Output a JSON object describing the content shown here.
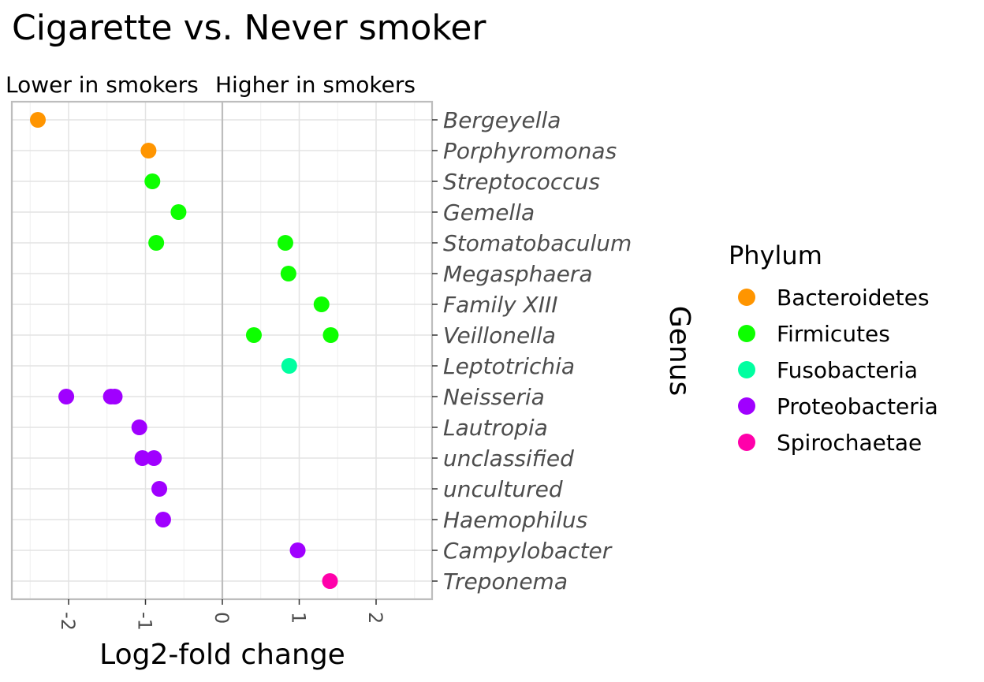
{
  "chart_data": {
    "type": "scatter",
    "title": "Cigarette vs. Never smoker",
    "subtitle_left": "Lower in smokers",
    "subtitle_right": "Higher in smokers",
    "xlabel": "Log2-fold change",
    "ylabel": "Genus",
    "xlim": [
      -2.75,
      2.75
    ],
    "x_ticks": [
      -2,
      -1,
      0,
      1,
      2
    ],
    "x_tick_labels": [
      "-2",
      "-1",
      "0",
      "1",
      "2"
    ],
    "x_tick_rotation": 90,
    "vline_at": 0,
    "grid": true,
    "categories": [
      "Bergeyella",
      "Porphyromonas",
      "Streptococcus",
      "Gemella",
      "Stomatobaculum",
      "Megasphaera",
      "Family XIII",
      "Veillonella",
      "Leptotrichia",
      "Neisseria",
      "Lautropia",
      "unclassified",
      "uncultured",
      "Haemophilus",
      "Campylobacter",
      "Treponema"
    ],
    "legend": {
      "title": "Phylum",
      "position": "right",
      "entries": [
        {
          "name": "Bacteroidetes",
          "color": "#FF9500"
        },
        {
          "name": "Firmicutes",
          "color": "#0DFF00"
        },
        {
          "name": "Fusobacteria",
          "color": "#00FFA0"
        },
        {
          "name": "Proteobacteria",
          "color": "#A000FF"
        },
        {
          "name": "Spirochaetae",
          "color": "#FF00AA"
        }
      ]
    },
    "points": [
      {
        "genus": "Bergeyella",
        "phylum": "Bacteroidetes",
        "x": -2.4
      },
      {
        "genus": "Porphyromonas",
        "phylum": "Bacteroidetes",
        "x": -0.96
      },
      {
        "genus": "Streptococcus",
        "phylum": "Firmicutes",
        "x": -0.91
      },
      {
        "genus": "Gemella",
        "phylum": "Firmicutes",
        "x": -0.57
      },
      {
        "genus": "Stomatobaculum",
        "phylum": "Firmicutes",
        "x": -0.86
      },
      {
        "genus": "Stomatobaculum",
        "phylum": "Firmicutes",
        "x": 0.82
      },
      {
        "genus": "Megasphaera",
        "phylum": "Firmicutes",
        "x": 0.86
      },
      {
        "genus": "Family XIII",
        "phylum": "Firmicutes",
        "x": 1.29
      },
      {
        "genus": "Veillonella",
        "phylum": "Firmicutes",
        "x": 0.41
      },
      {
        "genus": "Veillonella",
        "phylum": "Firmicutes",
        "x": 1.41
      },
      {
        "genus": "Leptotrichia",
        "phylum": "Fusobacteria",
        "x": 0.87
      },
      {
        "genus": "Neisseria",
        "phylum": "Proteobacteria",
        "x": -2.03
      },
      {
        "genus": "Neisseria",
        "phylum": "Proteobacteria",
        "x": -1.45
      },
      {
        "genus": "Neisseria",
        "phylum": "Proteobacteria",
        "x": -1.4
      },
      {
        "genus": "Lautropia",
        "phylum": "Proteobacteria",
        "x": -1.08
      },
      {
        "genus": "unclassified",
        "phylum": "Proteobacteria",
        "x": -1.04
      },
      {
        "genus": "unclassified",
        "phylum": "Proteobacteria",
        "x": -0.89
      },
      {
        "genus": "uncultured",
        "phylum": "Proteobacteria",
        "x": -0.82
      },
      {
        "genus": "Haemophilus",
        "phylum": "Proteobacteria",
        "x": -0.77
      },
      {
        "genus": "Campylobacter",
        "phylum": "Proteobacteria",
        "x": 0.98
      },
      {
        "genus": "Treponema",
        "phylum": "Spirochaetae",
        "x": 1.4
      }
    ]
  }
}
